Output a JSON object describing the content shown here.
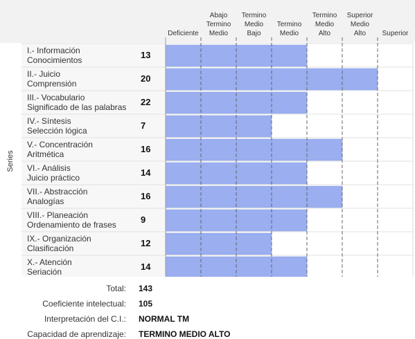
{
  "chart_data": {
    "type": "bar",
    "orientation": "horizontal",
    "ylabel": "Series",
    "columns": [
      "Deficiente",
      "Abajo Termino Medio",
      "Termino Medio Bajo",
      "Termino Medio",
      "Termino Medio Alto",
      "Superior Medio Alto",
      "Superior"
    ],
    "categories": [
      "I.- Información Conocimientos",
      "II.- Juicio Comprensión",
      "III.- Vocabulario Significado de las palabras",
      "IV.- Síntesis Selección lógica",
      "V.- Concentración Aritmética",
      "VI.- Análisis Juicio práctico",
      "VII.- Abstracción Analogías",
      "VIII.- Planeación Ordenamiento de frases",
      "IX.- Organización Clasificación",
      "X.- Atención Seriación"
    ],
    "scores": [
      13,
      20,
      22,
      7,
      16,
      14,
      16,
      9,
      12,
      14
    ],
    "levels": [
      4,
      6,
      4,
      3,
      5,
      4,
      5,
      4,
      3,
      4
    ],
    "bar_color": "#9aaef0",
    "grid": "dashed"
  },
  "summary": {
    "total_label": "Total:",
    "total_value": "143",
    "ci_label": "Coeficiente intelectual:",
    "ci_value": "105",
    "interp_label": "Interpretación del C.I.:",
    "interp_value": "NORMAL TM",
    "capacidad_label": "Capacidad de aprendizaje:",
    "capacidad_value": "TERMINO MEDIO ALTO"
  }
}
